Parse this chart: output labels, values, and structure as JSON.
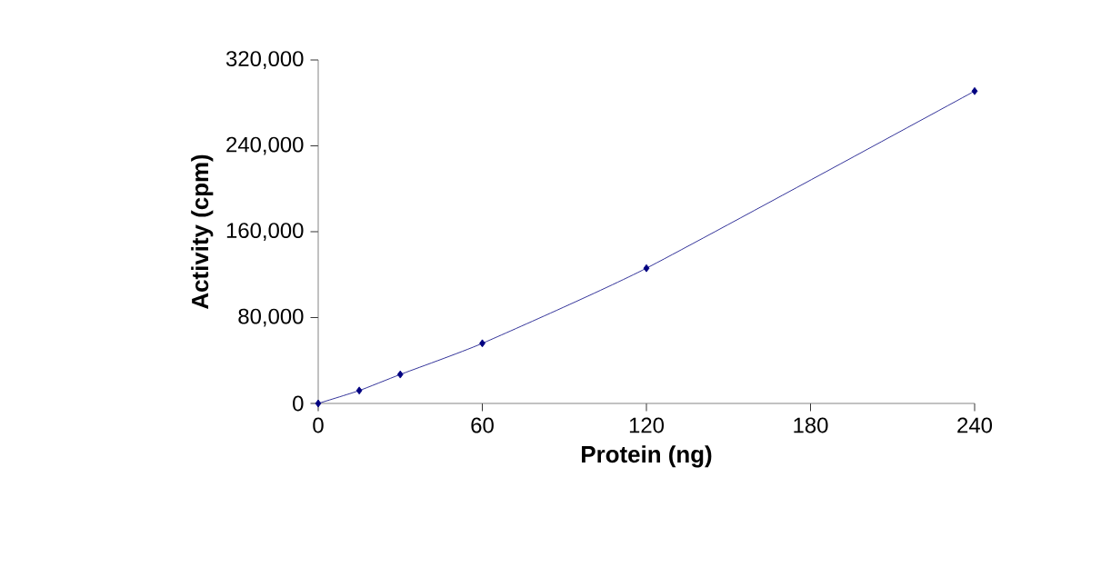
{
  "chart_data": {
    "type": "line",
    "xlabel": "Protein (ng)",
    "ylabel": "Activity (cpm)",
    "x": [
      0,
      15,
      30,
      60,
      120,
      240
    ],
    "series": [
      {
        "color": "#000080",
        "values": [
          0,
          12000,
          27000,
          56000,
          126000,
          291000
        ]
      }
    ],
    "xlim": [
      0,
      240
    ],
    "xticks": [
      0,
      60,
      120,
      180,
      240
    ],
    "ylim": [
      0,
      320000
    ],
    "yticks": [
      {
        "value": 0,
        "label": "0"
      },
      {
        "value": 80000,
        "label": "80,000"
      },
      {
        "value": 160000,
        "label": "160,000"
      },
      {
        "value": 240000,
        "label": "240,000"
      },
      {
        "value": 320000,
        "label": "320,000"
      }
    ],
    "marker": "diamond",
    "line_style": "solid"
  }
}
